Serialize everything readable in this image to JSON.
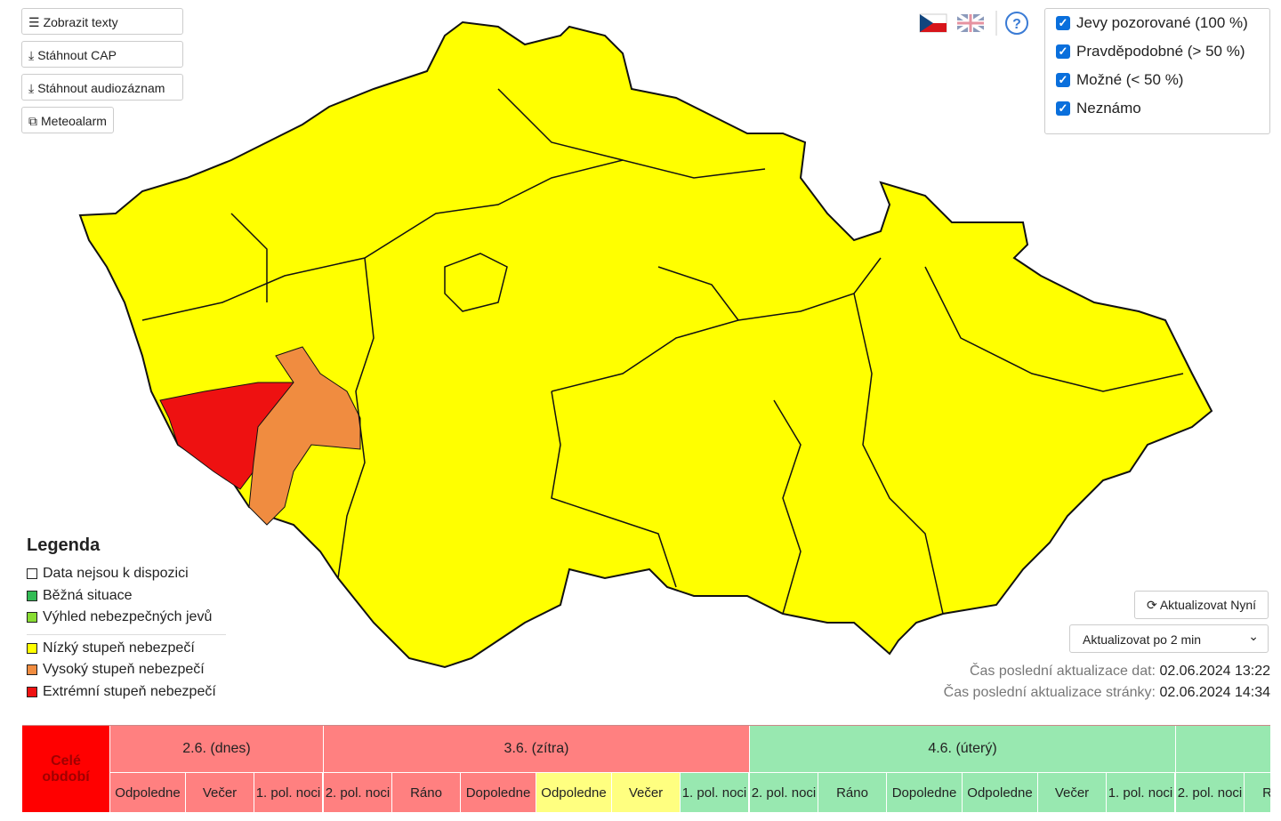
{
  "buttons": [
    {
      "label": "Zobrazit texty",
      "icon": "☰"
    },
    {
      "label": "Stáhnout CAP",
      "icon": "⤓"
    },
    {
      "label": "Stáhnout audiozáznam",
      "icon": "⤓"
    },
    {
      "label": "Meteoalarm",
      "icon": "⧉"
    }
  ],
  "filters": [
    "Jevy pozorované (100 %)",
    "Pravděpodobné (> 50 %)",
    "Možné (< 50 %)",
    "Neznámo"
  ],
  "help": "?",
  "legend": {
    "title": "Legenda",
    "items": [
      {
        "label": "Data nejsou k dispozici",
        "color": "#ffffff"
      },
      {
        "label": "Běžná situace",
        "color": "#33bb55"
      },
      {
        "label": "Výhled nebezpečných jevů",
        "color": "#88dd33"
      },
      {
        "label": "Nízký stupeň nebezpečí",
        "color": "#ffff00"
      },
      {
        "label": "Vysoký stupeň nebezpečí",
        "color": "#f08c40"
      },
      {
        "label": "Extrémní stupeň nebezpečí",
        "color": "#ee1111"
      }
    ]
  },
  "update": {
    "button": "Aktualizovat Nyní",
    "select": "Aktualizovat po 2 min"
  },
  "status": [
    {
      "label": "Čas poslední aktualizace dat:",
      "value": "02.06.2024 13:22"
    },
    {
      "label": "Čas poslední aktualizace stránky:",
      "value": "02.06.2024 14:34"
    }
  ],
  "timeline": {
    "whole": {
      "label": "Celé období",
      "color": "#ff0000"
    },
    "days": [
      {
        "label": "2.6. (dnes)",
        "color": "#ff8080",
        "periods": [
          {
            "label": "Odpoledne",
            "color": "#ff8080"
          },
          {
            "label": "Večer",
            "color": "#ff8080"
          },
          {
            "label": "1. pol. noci",
            "color": "#ff8080"
          }
        ]
      },
      {
        "label": "3.6. (zítra)",
        "color": "#ff8080",
        "periods": [
          {
            "label": "2. pol. noci",
            "color": "#ff8080"
          },
          {
            "label": "Ráno",
            "color": "#ff8080"
          },
          {
            "label": "Dopoledne",
            "color": "#ff8080"
          },
          {
            "label": "Odpoledne",
            "color": "#ffff80"
          },
          {
            "label": "Večer",
            "color": "#ffff80"
          },
          {
            "label": "1. pol. noci",
            "color": "#98e8b0"
          }
        ]
      },
      {
        "label": "4.6. (úterý)",
        "color": "#98e8b0",
        "periods": [
          {
            "label": "2. pol. noci",
            "color": "#98e8b0"
          },
          {
            "label": "Ráno",
            "color": "#98e8b0"
          },
          {
            "label": "Dopoledne",
            "color": "#98e8b0"
          },
          {
            "label": "Odpoledne",
            "color": "#98e8b0"
          },
          {
            "label": "Večer",
            "color": "#98e8b0"
          },
          {
            "label": "1. pol. noci",
            "color": "#98e8b0"
          }
        ]
      },
      {
        "label": null,
        "color": "#98e8b0",
        "periods": [
          {
            "label": "2. pol. noci",
            "color": "#98e8b0"
          },
          {
            "label": "Ráno",
            "color": "#98e8b0"
          }
        ]
      }
    ]
  }
}
